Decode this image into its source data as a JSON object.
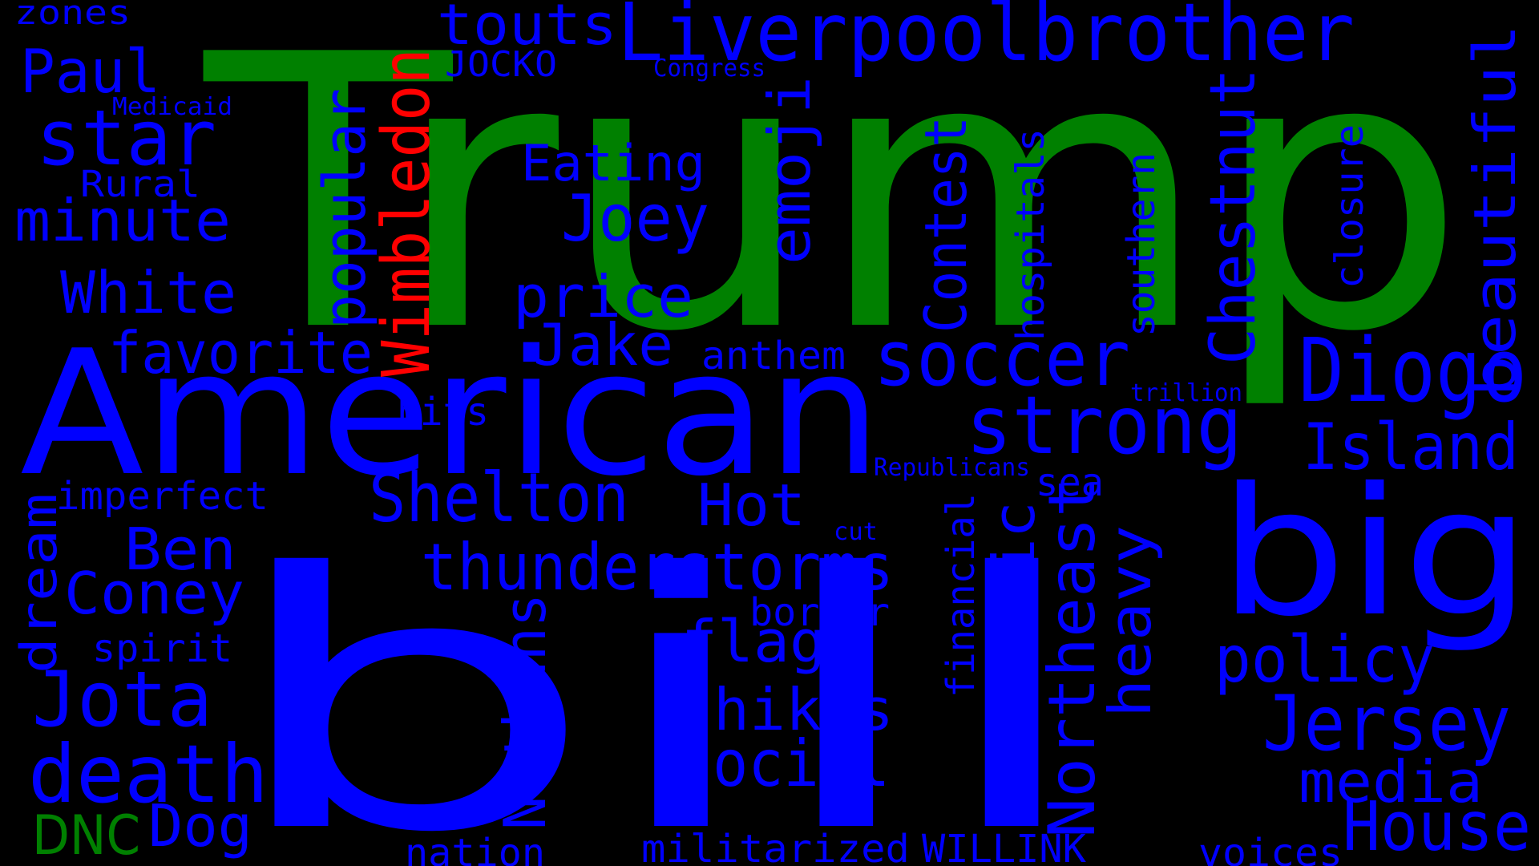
{
  "background": "#000000",
  "colors": {
    "blue": "#0000ff",
    "green": "#008000",
    "red": "#ff0000"
  },
  "words": [
    {
      "text": "Trump",
      "color": "green"
    },
    {
      "text": "bill",
      "color": "blue"
    },
    {
      "text": "American",
      "color": "blue"
    },
    {
      "text": "big",
      "color": "blue"
    },
    {
      "text": "Liverpoolbrother",
      "color": "blue"
    },
    {
      "text": "Wimbledon",
      "color": "red"
    },
    {
      "text": "DNC",
      "color": "green"
    },
    {
      "text": "zones",
      "color": "blue"
    },
    {
      "text": "touts",
      "color": "blue"
    },
    {
      "text": "Paul",
      "color": "blue"
    },
    {
      "text": "JOCKO",
      "color": "blue"
    },
    {
      "text": "Congress",
      "color": "blue"
    },
    {
      "text": "Medicaid",
      "color": "blue"
    },
    {
      "text": "star",
      "color": "blue"
    },
    {
      "text": "Rural",
      "color": "blue"
    },
    {
      "text": "minute",
      "color": "blue"
    },
    {
      "text": "White",
      "color": "blue"
    },
    {
      "text": "favorite",
      "color": "blue"
    },
    {
      "text": "popular",
      "color": "blue"
    },
    {
      "text": "Eating",
      "color": "blue"
    },
    {
      "text": "Joey",
      "color": "blue"
    },
    {
      "text": "price",
      "color": "blue"
    },
    {
      "text": "Jake",
      "color": "blue"
    },
    {
      "text": "emoji",
      "color": "blue"
    },
    {
      "text": "Contest",
      "color": "blue"
    },
    {
      "text": "hospitals",
      "color": "blue"
    },
    {
      "text": "southern",
      "color": "blue"
    },
    {
      "text": "Chestnut",
      "color": "blue"
    },
    {
      "text": "closure",
      "color": "blue"
    },
    {
      "text": "beautiful",
      "color": "blue"
    },
    {
      "text": "Diogo",
      "color": "blue"
    },
    {
      "text": "anthem",
      "color": "blue"
    },
    {
      "text": "soccer",
      "color": "blue"
    },
    {
      "text": "strong",
      "color": "blue"
    },
    {
      "text": "trillion",
      "color": "blue"
    },
    {
      "text": "Island",
      "color": "blue"
    },
    {
      "text": "hits",
      "color": "blue"
    },
    {
      "text": "Republicans",
      "color": "blue"
    },
    {
      "text": "imperfect",
      "color": "blue"
    },
    {
      "text": "Shelton",
      "color": "blue"
    },
    {
      "text": "Hot",
      "color": "blue"
    },
    {
      "text": "sea",
      "color": "blue"
    },
    {
      "text": "cut",
      "color": "blue"
    },
    {
      "text": "dream",
      "color": "blue"
    },
    {
      "text": "Ben",
      "color": "blue"
    },
    {
      "text": "thunderstorms",
      "color": "blue"
    },
    {
      "text": "financial",
      "color": "blue"
    },
    {
      "text": "domestic",
      "color": "blue"
    },
    {
      "text": "Northeast",
      "color": "blue"
    },
    {
      "text": "heavy",
      "color": "blue"
    },
    {
      "text": "Coney",
      "color": "blue"
    },
    {
      "text": "border",
      "color": "blue"
    },
    {
      "text": "spirit",
      "color": "blue"
    },
    {
      "text": "flag",
      "color": "blue"
    },
    {
      "text": "policy",
      "color": "blue"
    },
    {
      "text": "Nathans",
      "color": "blue"
    },
    {
      "text": "Jota",
      "color": "blue"
    },
    {
      "text": "hikes",
      "color": "blue"
    },
    {
      "text": "Jersey",
      "color": "blue"
    },
    {
      "text": "death",
      "color": "blue"
    },
    {
      "text": "social",
      "color": "blue"
    },
    {
      "text": "media",
      "color": "blue"
    },
    {
      "text": "Dog",
      "color": "blue"
    },
    {
      "text": "House",
      "color": "blue"
    },
    {
      "text": "militarized",
      "color": "blue"
    },
    {
      "text": "WILLINK",
      "color": "blue"
    },
    {
      "text": "nation",
      "color": "blue"
    },
    {
      "text": "voices",
      "color": "blue"
    }
  ]
}
